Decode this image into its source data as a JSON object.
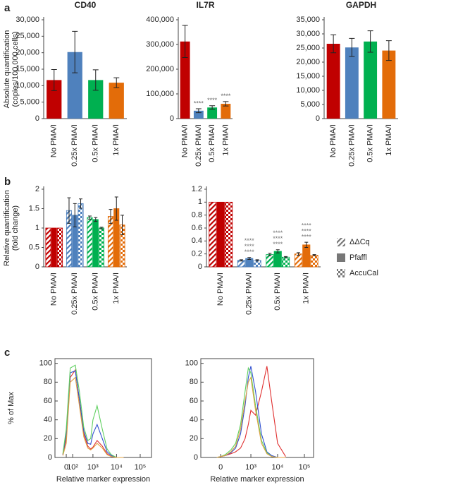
{
  "chart_data": [
    {
      "type": "bar",
      "label": "a",
      "ylabel": [
        "Absolute quantification",
        "(copies/100,000 cells)"
      ],
      "categories": [
        "No PMA/I",
        "0.25x PMA/I",
        "0.5x PMA/I",
        "1x PMA/I"
      ],
      "colors": [
        "#c00000",
        "#4f81bd",
        "#00b050",
        "#e36c09"
      ],
      "panels": [
        {
          "title": "CD40",
          "values": [
            11700,
            20200,
            11700,
            10900
          ],
          "errors": [
            3200,
            6300,
            3100,
            1500
          ],
          "ylim": [
            0,
            30000
          ],
          "yticks": [
            0,
            {
              "value": 5000,
              "label": "5,000"
            },
            {
              "value": 10000,
              "label": "10,000"
            },
            {
              "value": 15000,
              "label": "15,000"
            },
            {
              "value": 20000,
              "label": "20,000"
            },
            {
              "value": 25000,
              "label": "25,000"
            },
            {
              "value": 30000,
              "label": "30,000"
            }
          ]
        },
        {
          "title": "IL7R",
          "values": [
            312000,
            32000,
            45000,
            60000
          ],
          "errors": [
            65000,
            8000,
            7000,
            9000
          ],
          "annotations": [
            null,
            "****",
            "****",
            "****"
          ],
          "ylim": [
            0,
            400000
          ],
          "yticks": [
            0,
            {
              "value": 100000,
              "label": "100,000"
            },
            {
              "value": 200000,
              "label": "200,000"
            },
            {
              "value": 300000,
              "label": "300,000"
            },
            {
              "value": 400000,
              "label": "400,000"
            }
          ]
        },
        {
          "title": "GAPDH",
          "values": [
            26500,
            25200,
            27300,
            24100
          ],
          "errors": [
            3200,
            3200,
            3800,
            3500
          ],
          "ylim": [
            0,
            35000
          ],
          "yticks": [
            0,
            {
              "value": 5000,
              "label": "5,000"
            },
            {
              "value": 10000,
              "label": "10,000"
            },
            {
              "value": 15000,
              "label": "15,000"
            },
            {
              "value": 20000,
              "label": "20,000"
            },
            {
              "value": 25000,
              "label": "25,000"
            },
            {
              "value": 30000,
              "label": "30,000"
            },
            {
              "value": 35000,
              "label": "35,000"
            }
          ]
        }
      ]
    },
    {
      "type": "grouped_bar",
      "label": "b",
      "ylabel": [
        "Relative quantification",
        "(fold change)"
      ],
      "categories": [
        "No PMA/I",
        "0.25x PMA/I",
        "0.5x PMA/I",
        "1x PMA/I"
      ],
      "colors": [
        "#c00000",
        "#4f81bd",
        "#00b050",
        "#e36c09"
      ],
      "series": [
        {
          "name": "ΔΔCq",
          "pattern": "hatch"
        },
        {
          "name": "Pfaffl",
          "pattern": "solid"
        },
        {
          "name": "AccuCal",
          "pattern": "check"
        }
      ],
      "legend": "right",
      "panels": [
        {
          "values": [
            [
              1,
              1.45,
              1.27,
              1.3
            ],
            [
              1,
              1.33,
              1.22,
              1.5
            ],
            [
              1,
              1.63,
              1.0,
              1.08
            ]
          ],
          "errors": [
            [
              0,
              0.33,
              0.04,
              0.18
            ],
            [
              0,
              0.3,
              0.05,
              0.3
            ],
            [
              0,
              0.12,
              0.02,
              0.25
            ]
          ],
          "ylim": [
            0,
            2
          ],
          "yticks": [
            0,
            0.5,
            1,
            1.5,
            2
          ]
        },
        {
          "values": [
            [
              1,
              0.1,
              0.19,
              0.2
            ],
            [
              1,
              0.13,
              0.24,
              0.34
            ],
            [
              1,
              0.1,
              0.15,
              0.18
            ]
          ],
          "errors": [
            [
              0,
              0.01,
              0.02,
              0.02
            ],
            [
              0,
              0.015,
              0.025,
              0.04
            ],
            [
              0,
              0.01,
              0.01,
              0.01
            ]
          ],
          "annotations": [
            null,
            [
              "****",
              "****",
              "****"
            ],
            [
              "****",
              "****",
              "****"
            ],
            [
              "****",
              "****",
              "****"
            ]
          ],
          "ylim": [
            0,
            1.2
          ],
          "yticks": [
            0,
            0.2,
            0.4,
            0.6,
            0.8,
            1,
            1.2
          ]
        }
      ]
    },
    {
      "type": "line",
      "label": "c",
      "ylabel": "% of Max",
      "xscale": "asinh",
      "panels": [
        {
          "xlabel": "Relative marker expression",
          "xlim": [
            -200,
            300000
          ],
          "ylim": [
            0,
            105
          ],
          "xticks": [
            0,
            {
              "value": 100,
              "label": "10²"
            },
            {
              "value": 1000,
              "label": "10³"
            },
            {
              "value": 10000,
              "label": "10⁴"
            },
            {
              "value": 100000,
              "label": "10⁵"
            }
          ],
          "yticks": [
            0,
            20,
            40,
            60,
            80,
            100
          ],
          "x": [
            -50,
            0,
            60,
            150,
            250,
            400,
            600,
            800,
            1000,
            1500,
            2500,
            4000,
            6000,
            10000,
            20000
          ],
          "series": [
            {
              "color": "#e03030",
              "values": [
                3,
                20,
                85,
                93,
                60,
                25,
                12,
                9,
                11,
                18,
                12,
                4,
                1,
                0,
                0
              ]
            },
            {
              "color": "#3050d0",
              "values": [
                3,
                25,
                90,
                92,
                62,
                28,
                15,
                14,
                25,
                35,
                20,
                6,
                2,
                0,
                0
              ]
            },
            {
              "color": "#60d060",
              "values": [
                4,
                30,
                95,
                98,
                70,
                32,
                18,
                20,
                40,
                55,
                30,
                9,
                3,
                0,
                0
              ]
            },
            {
              "color": "#e0a040",
              "values": [
                2,
                15,
                80,
                85,
                55,
                22,
                10,
                8,
                10,
                15,
                10,
                3,
                1,
                0,
                0
              ]
            }
          ]
        },
        {
          "xlabel": "Relative marker expression",
          "xlim": [
            -400,
            220000
          ],
          "ylim": [
            0,
            105
          ],
          "xticks": [
            0,
            {
              "value": 1000,
              "label": "10³"
            },
            {
              "value": 10000,
              "label": "10⁴"
            },
            {
              "value": 100000,
              "label": "10⁵"
            }
          ],
          "yticks": [
            0,
            20,
            40,
            60,
            80,
            100
          ],
          "x": [
            -50,
            0,
            60,
            150,
            250,
            400,
            600,
            800,
            1000,
            1500,
            2500,
            4000,
            6000,
            10000,
            20000
          ],
          "series": [
            {
              "color": "#e03030",
              "values": [
                0,
                1,
                2,
                4,
                6,
                10,
                20,
                35,
                50,
                45,
                70,
                97,
                60,
                15,
                1
              ]
            },
            {
              "color": "#3050d0",
              "values": [
                0,
                1,
                2,
                5,
                10,
                25,
                55,
                85,
                97,
                70,
                25,
                6,
                2,
                0,
                0
              ]
            },
            {
              "color": "#60d060",
              "values": [
                0,
                1,
                3,
                8,
                15,
                35,
                70,
                95,
                90,
                55,
                18,
                5,
                1,
                0,
                0
              ]
            },
            {
              "color": "#e0a040",
              "values": [
                0,
                1,
                2,
                6,
                12,
                30,
                60,
                80,
                85,
                50,
                15,
                4,
                1,
                0,
                0
              ]
            }
          ]
        }
      ]
    }
  ]
}
